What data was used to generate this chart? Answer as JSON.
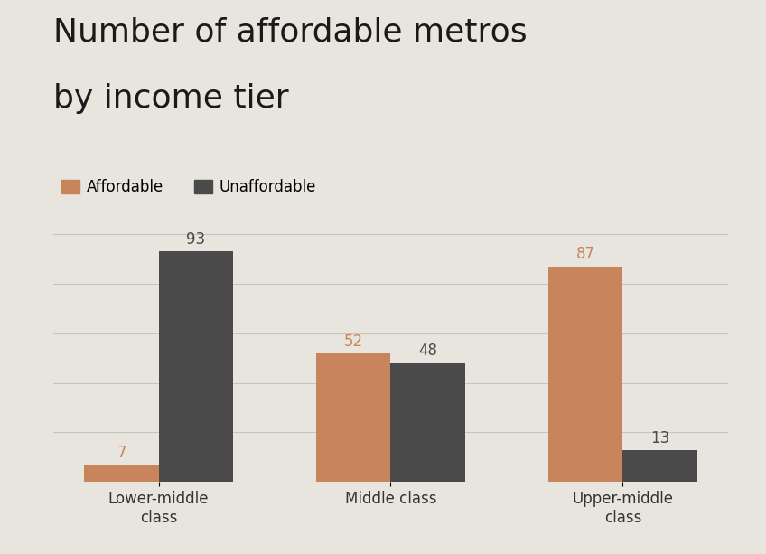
{
  "title_line1": "Number of affordable metros",
  "title_line2": "by income tier",
  "categories": [
    "Lower-middle\nclass",
    "Middle class",
    "Upper-middle\nclass"
  ],
  "affordable": [
    7,
    52,
    87
  ],
  "unaffordable": [
    93,
    48,
    13
  ],
  "affordable_color": "#C8845A",
  "unaffordable_color": "#4A4A4A",
  "background_color": "#E8E5DF",
  "title_fontsize": 26,
  "legend_fontsize": 12,
  "bar_label_fontsize": 12,
  "xlabel_fontsize": 12,
  "ylim": [
    0,
    105
  ],
  "bar_width": 0.32,
  "legend_labels": [
    "Affordable",
    "Unaffordable"
  ]
}
